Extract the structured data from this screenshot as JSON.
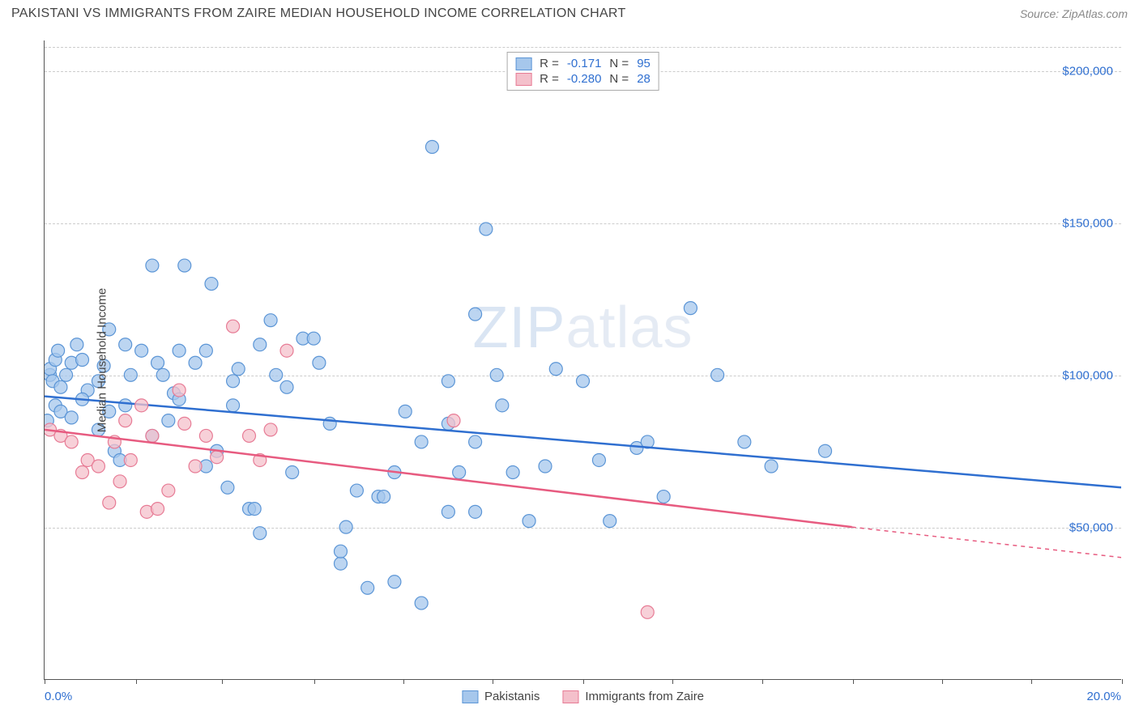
{
  "header": {
    "title": "PAKISTANI VS IMMIGRANTS FROM ZAIRE MEDIAN HOUSEHOLD INCOME CORRELATION CHART",
    "source": "Source: ZipAtlas.com"
  },
  "watermark": {
    "bold": "ZIP",
    "light": "atlas"
  },
  "chart": {
    "type": "scatter",
    "background_color": "#ffffff",
    "grid_color": "#cccccc",
    "axis_color": "#555555",
    "tick_label_color": "#2f6fd0",
    "title_fontsize": 16,
    "label_fontsize": 15,
    "y_axis_title": "Median Household Income",
    "xlim": [
      0,
      20
    ],
    "ylim": [
      0,
      210000
    ],
    "x_tick_positions_pct": [
      0,
      8.5,
      16.5,
      25,
      33.3,
      41.6,
      50,
      58.3,
      66.6,
      75,
      83.3,
      91.6,
      100
    ],
    "x_axis_left_label": "0.0%",
    "x_axis_right_label": "20.0%",
    "y_ticks": [
      {
        "value": 50000,
        "label": "$50,000"
      },
      {
        "value": 100000,
        "label": "$100,000"
      },
      {
        "value": 150000,
        "label": "$150,000"
      },
      {
        "value": 200000,
        "label": "$200,000"
      }
    ],
    "series": [
      {
        "name": "Pakistanis",
        "marker_fill": "#a6c7ec",
        "marker_stroke": "#5b95d6",
        "marker_opacity": 0.75,
        "marker_radius": 8,
        "line_color": "#2f6fd0",
        "line_width": 2.5,
        "regression": {
          "x1": 0,
          "y1": 93000,
          "x2": 20,
          "y2": 63000,
          "dash_from_x": 20
        },
        "stats": {
          "R": "-0.171",
          "N": "95"
        },
        "points": [
          [
            0.05,
            85000
          ],
          [
            0.1,
            100000
          ],
          [
            0.1,
            102000
          ],
          [
            0.15,
            98000
          ],
          [
            0.2,
            105000
          ],
          [
            0.2,
            90000
          ],
          [
            0.25,
            108000
          ],
          [
            0.3,
            96000
          ],
          [
            0.4,
            100000
          ],
          [
            0.5,
            104000
          ],
          [
            0.6,
            110000
          ],
          [
            0.7,
            105000
          ],
          [
            0.8,
            95000
          ],
          [
            1.0,
            98000
          ],
          [
            1.1,
            103000
          ],
          [
            1.2,
            115000
          ],
          [
            1.3,
            75000
          ],
          [
            1.4,
            72000
          ],
          [
            1.5,
            90000
          ],
          [
            1.5,
            110000
          ],
          [
            1.6,
            100000
          ],
          [
            1.8,
            108000
          ],
          [
            2.0,
            136000
          ],
          [
            2.1,
            104000
          ],
          [
            2.2,
            100000
          ],
          [
            2.3,
            85000
          ],
          [
            2.4,
            94000
          ],
          [
            2.5,
            92000
          ],
          [
            2.6,
            136000
          ],
          [
            2.8,
            104000
          ],
          [
            3.0,
            108000
          ],
          [
            3.1,
            130000
          ],
          [
            3.2,
            75000
          ],
          [
            3.4,
            63000
          ],
          [
            3.5,
            90000
          ],
          [
            3.6,
            102000
          ],
          [
            3.8,
            56000
          ],
          [
            3.9,
            56000
          ],
          [
            4.0,
            110000
          ],
          [
            4.2,
            118000
          ],
          [
            4.3,
            100000
          ],
          [
            4.5,
            96000
          ],
          [
            4.6,
            68000
          ],
          [
            4.8,
            112000
          ],
          [
            5.0,
            112000
          ],
          [
            5.1,
            104000
          ],
          [
            5.3,
            84000
          ],
          [
            5.5,
            38000
          ],
          [
            5.6,
            50000
          ],
          [
            5.8,
            62000
          ],
          [
            6.0,
            30000
          ],
          [
            6.2,
            60000
          ],
          [
            6.3,
            60000
          ],
          [
            6.5,
            32000
          ],
          [
            6.5,
            68000
          ],
          [
            6.7,
            88000
          ],
          [
            7.0,
            25000
          ],
          [
            7.0,
            78000
          ],
          [
            7.2,
            175000
          ],
          [
            7.5,
            98000
          ],
          [
            7.5,
            84000
          ],
          [
            7.7,
            68000
          ],
          [
            8.0,
            120000
          ],
          [
            8.0,
            78000
          ],
          [
            8.0,
            55000
          ],
          [
            8.2,
            148000
          ],
          [
            8.4,
            100000
          ],
          [
            8.5,
            90000
          ],
          [
            8.7,
            68000
          ],
          [
            9.0,
            52000
          ],
          [
            9.3,
            70000
          ],
          [
            9.5,
            102000
          ],
          [
            10.0,
            98000
          ],
          [
            10.3,
            72000
          ],
          [
            10.5,
            52000
          ],
          [
            11.0,
            76000
          ],
          [
            11.2,
            78000
          ],
          [
            11.5,
            60000
          ],
          [
            12.0,
            122000
          ],
          [
            12.5,
            100000
          ],
          [
            13.0,
            78000
          ],
          [
            13.5,
            70000
          ],
          [
            14.5,
            75000
          ],
          [
            0.3,
            88000
          ],
          [
            0.5,
            86000
          ],
          [
            0.7,
            92000
          ],
          [
            1.0,
            82000
          ],
          [
            1.2,
            88000
          ],
          [
            2.0,
            80000
          ],
          [
            2.5,
            108000
          ],
          [
            3.0,
            70000
          ],
          [
            3.5,
            98000
          ],
          [
            4.0,
            48000
          ],
          [
            5.5,
            42000
          ],
          [
            7.5,
            55000
          ]
        ]
      },
      {
        "name": "Immigrants from Zaire",
        "marker_fill": "#f4c0cb",
        "marker_stroke": "#e77b95",
        "marker_opacity": 0.75,
        "marker_radius": 8,
        "line_color": "#e75b80",
        "line_width": 2.5,
        "regression": {
          "x1": 0,
          "y1": 82000,
          "x2": 15,
          "y2": 50000,
          "dash_from_x": 15,
          "x2_ext": 20,
          "y2_ext": 40000
        },
        "stats": {
          "R": "-0.280",
          "N": "28"
        },
        "points": [
          [
            0.1,
            82000
          ],
          [
            0.3,
            80000
          ],
          [
            0.5,
            78000
          ],
          [
            0.7,
            68000
          ],
          [
            0.8,
            72000
          ],
          [
            1.0,
            70000
          ],
          [
            1.2,
            58000
          ],
          [
            1.3,
            78000
          ],
          [
            1.4,
            65000
          ],
          [
            1.5,
            85000
          ],
          [
            1.6,
            72000
          ],
          [
            1.8,
            90000
          ],
          [
            1.9,
            55000
          ],
          [
            2.0,
            80000
          ],
          [
            2.1,
            56000
          ],
          [
            2.3,
            62000
          ],
          [
            2.5,
            95000
          ],
          [
            2.6,
            84000
          ],
          [
            2.8,
            70000
          ],
          [
            3.0,
            80000
          ],
          [
            3.2,
            73000
          ],
          [
            3.5,
            116000
          ],
          [
            3.8,
            80000
          ],
          [
            4.0,
            72000
          ],
          [
            4.2,
            82000
          ],
          [
            4.5,
            108000
          ],
          [
            7.6,
            85000
          ],
          [
            11.2,
            22000
          ]
        ]
      }
    ],
    "legend_top_labels": {
      "R": "R =",
      "N": "N ="
    },
    "legend_bottom": [
      {
        "label": "Pakistanis",
        "fill": "#a6c7ec",
        "stroke": "#5b95d6"
      },
      {
        "label": "Immigrants from Zaire",
        "fill": "#f4c0cb",
        "stroke": "#e77b95"
      }
    ]
  }
}
